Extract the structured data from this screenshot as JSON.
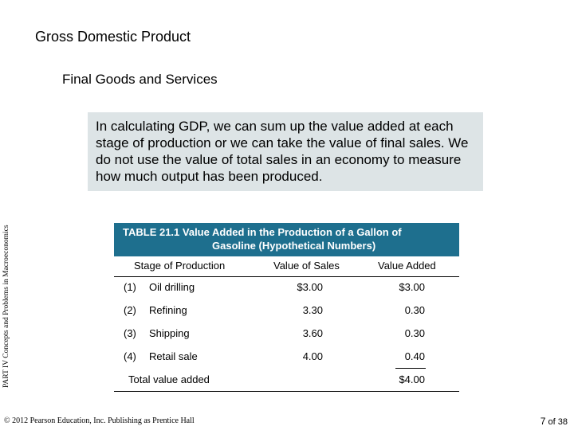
{
  "slide": {
    "title": "Gross Domestic Product",
    "subtitle": "Final Goods and Services",
    "callout": "In calculating GDP, we can sum up the value added at each stage of production or we can take the value of final sales. We do not use the value of total sales in an economy to measure how much output has been produced.",
    "side_label": "PART IV  Concepts and Problems in Macroeconomics",
    "copyright": "© 2012 Pearson Education, Inc. Publishing as Prentice Hall",
    "page_current": "7",
    "page_of": "of 38"
  },
  "table": {
    "title_line1": "TABLE 21.1  Value Added in the Production of a Gallon of",
    "title_line2": "Gasoline (Hypothetical Numbers)",
    "columns": [
      "Stage of Production",
      "Value of Sales",
      "Value Added"
    ],
    "rows": [
      {
        "num": "(1)",
        "stage": "Oil drilling",
        "sales": "$3.00",
        "added": "$3.00"
      },
      {
        "num": "(2)",
        "stage": "Refining",
        "sales": "3.30",
        "added": "0.30"
      },
      {
        "num": "(3)",
        "stage": "Shipping",
        "sales": "3.60",
        "added": "0.30"
      },
      {
        "num": "(4)",
        "stage": "Retail sale",
        "sales": "4.00",
        "added": "0.40"
      }
    ],
    "total_label": "Total value added",
    "total_value": "$4.00"
  },
  "colors": {
    "callout_bg": "#dde4e6",
    "table_header_bg": "#1e6f8e"
  }
}
